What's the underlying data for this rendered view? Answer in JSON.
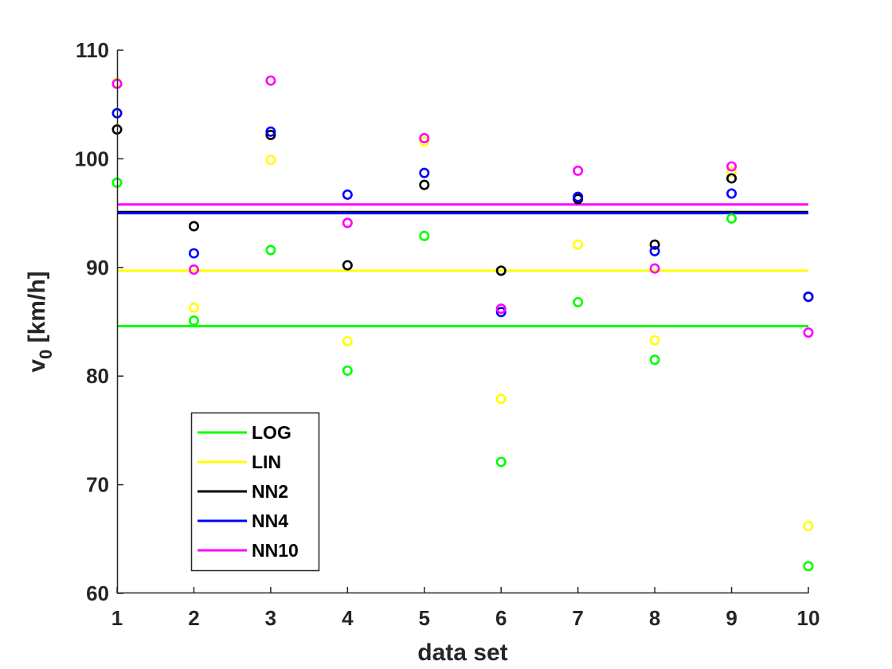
{
  "chart_data": {
    "type": "scatter",
    "title": "",
    "xlabel": "data set",
    "ylabel": "v",
    "ylabel_subscript": "0",
    "ylabel_unit": " [km/h]",
    "xlim": [
      1,
      10
    ],
    "ylim": [
      60,
      110
    ],
    "xticks": [
      "1",
      "2",
      "3",
      "4",
      "5",
      "6",
      "7",
      "8",
      "9",
      "10"
    ],
    "yticks": [
      "60",
      "70",
      "80",
      "90",
      "100",
      "110"
    ],
    "grid": false,
    "legend_position": "bottom-left",
    "x": [
      1,
      2,
      3,
      4,
      5,
      6,
      7,
      8,
      9,
      10
    ],
    "series": [
      {
        "name": "LOG",
        "color": "#00ff00",
        "mean": 84.6,
        "values": [
          97.8,
          85.1,
          91.6,
          80.5,
          92.9,
          72.1,
          86.8,
          81.5,
          94.5,
          62.5
        ]
      },
      {
        "name": "LIN",
        "color": "#ffff00",
        "mean": 89.7,
        "values": [
          107.0,
          86.3,
          99.9,
          83.2,
          101.6,
          77.9,
          92.1,
          83.3,
          98.8,
          66.2
        ]
      },
      {
        "name": "NN2",
        "color": "#000000",
        "mean": 95.1,
        "values": [
          102.7,
          93.8,
          102.2,
          90.2,
          97.6,
          89.7,
          96.3,
          92.1,
          98.2,
          87.3
        ]
      },
      {
        "name": "NN4",
        "color": "#0000ff",
        "mean": 95.0,
        "values": [
          104.2,
          91.3,
          102.5,
          96.7,
          98.7,
          85.9,
          96.5,
          91.5,
          96.8,
          87.3
        ]
      },
      {
        "name": "NN10",
        "color": "#ff00ff",
        "mean": 95.8,
        "values": [
          106.9,
          89.8,
          107.2,
          94.1,
          101.9,
          86.2,
          98.9,
          89.9,
          99.3,
          84.0
        ]
      }
    ]
  }
}
